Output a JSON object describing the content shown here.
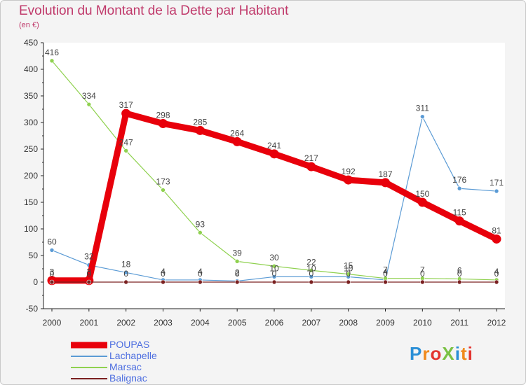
{
  "title": "Evolution du Montant de la Dette par Habitant",
  "subtitle": "(en €)",
  "logo": {
    "text": "ProXiti",
    "colors": [
      "#2a8fd6",
      "#f08a1c",
      "#e3342f",
      "#7ac143",
      "#2a8fd6",
      "#f08a1c",
      "#e3342f"
    ]
  },
  "chart_data": {
    "type": "line",
    "x": [
      "2000",
      "2001",
      "2002",
      "2003",
      "2004",
      "2005",
      "2006",
      "2007",
      "2008",
      "2009",
      "2010",
      "2011",
      "2012"
    ],
    "ylim": [
      -50,
      450
    ],
    "yticks": [
      -50,
      0,
      50,
      100,
      150,
      200,
      250,
      300,
      350,
      400,
      450
    ],
    "grid": false,
    "legend_position": "bottom-left",
    "series": [
      {
        "name": "POUPAS",
        "color": "#e8000b",
        "line_width": 9,
        "values": [
          3,
          3,
          317,
          298,
          285,
          264,
          241,
          217,
          192,
          187,
          150,
          115,
          81
        ],
        "labels": [
          "3",
          "3",
          "317",
          "298",
          "285",
          "264",
          "241",
          "217",
          "192",
          "187",
          "150",
          "115",
          "81"
        ]
      },
      {
        "name": "Lachapelle",
        "color": "#5b9bd5",
        "line_width": 1.2,
        "values": [
          60,
          32,
          18,
          4,
          4,
          2,
          10,
          10,
          10,
          4,
          311,
          176,
          171
        ],
        "labels": [
          "60",
          "32",
          "18",
          "4",
          "4",
          "2",
          "10",
          "10",
          "10",
          "4",
          "311",
          "176",
          "171"
        ]
      },
      {
        "name": "Marsac",
        "color": "#8fd14f",
        "line_width": 1.2,
        "values": [
          416,
          334,
          247,
          173,
          93,
          39,
          30,
          22,
          15,
          7,
          7,
          6,
          4
        ],
        "labels": [
          "416",
          "334",
          "247",
          "173",
          "93",
          "39",
          "30",
          "22",
          "15",
          "7",
          "7",
          "6",
          "4"
        ]
      },
      {
        "name": "Balignac",
        "color": "#7a2020",
        "line_width": 1.2,
        "values": [
          0,
          0,
          0,
          0,
          0,
          0,
          0,
          0,
          0,
          0,
          0,
          0,
          0
        ],
        "labels": [
          "0",
          "0",
          "0",
          "0",
          "0",
          "0",
          "0",
          "0",
          "0",
          "0",
          "0",
          "0",
          "0"
        ]
      }
    ]
  }
}
